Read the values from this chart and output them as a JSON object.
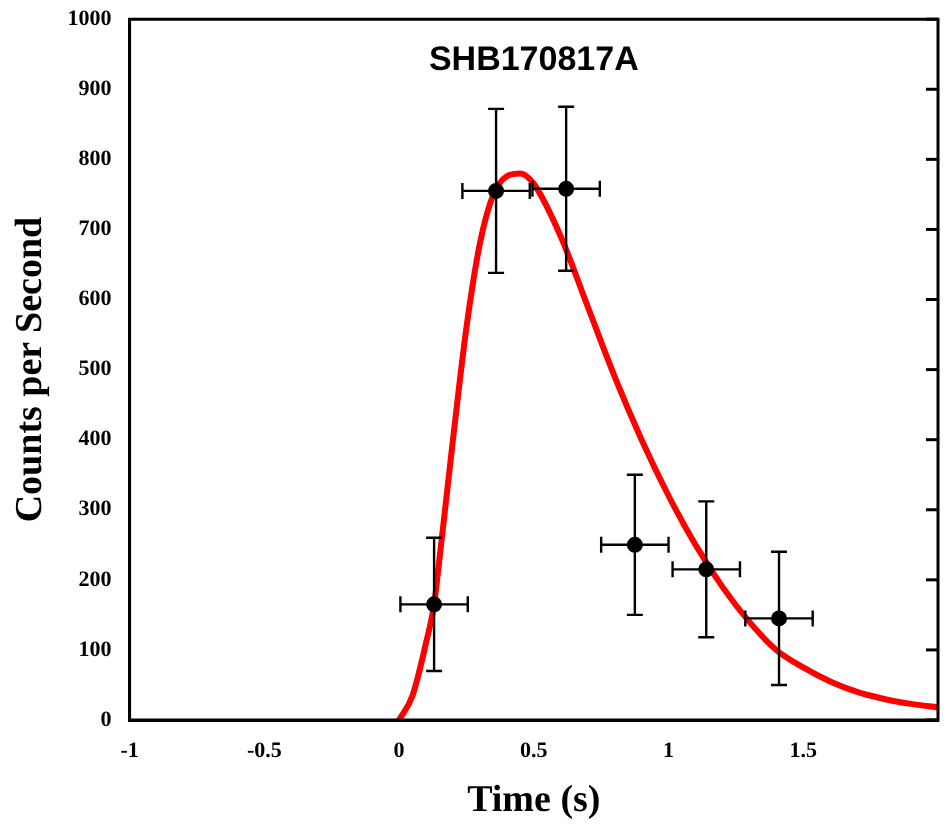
{
  "chart_data": {
    "type": "scatter",
    "title": "SHB170817A",
    "xlabel": "Time (s)",
    "ylabel": "Counts per Second",
    "xlim": [
      -1,
      2
    ],
    "ylim": [
      0,
      1000
    ],
    "xticks": [
      -1,
      -0.5,
      0,
      0.5,
      1,
      1.5,
      {
        "value": 2,
        "label": null
      }
    ],
    "yticks": [
      0,
      100,
      200,
      300,
      400,
      500,
      600,
      700,
      800,
      900,
      1000
    ],
    "grid": false,
    "legend": false,
    "marker": "circle",
    "series": [
      {
        "type": "scatter",
        "color": "#000000",
        "x": [
          0.13,
          0.36,
          0.62,
          0.875,
          1.14,
          1.41
        ],
        "values": [
          165,
          755,
          758,
          250,
          215,
          145
        ],
        "errors": [
          95,
          117,
          117,
          100,
          97,
          95
        ],
        "xerrors": [
          0.125,
          0.125,
          0.125,
          0.125,
          0.125,
          0.125
        ]
      },
      {
        "type": "line",
        "color": "#ff0000",
        "line_style": "solid",
        "marker": "none",
        "x": [
          0,
          0.05,
          0.1,
          0.13,
          0.15,
          0.2,
          0.25,
          0.3,
          0.35,
          0.4,
          0.45,
          0.5,
          0.6,
          0.7,
          0.8,
          0.9,
          1,
          1.1,
          1.2,
          1.3,
          1.4,
          1.5,
          1.6,
          1.7,
          1.8,
          1.9,
          2
        ],
        "values": [
          0,
          35,
          110,
          165,
          230,
          400,
          560,
          680,
          750,
          776,
          780,
          765,
          690,
          590,
          490,
          400,
          320,
          250,
          190,
          140,
          100,
          75,
          55,
          40,
          30,
          23,
          18
        ]
      }
    ]
  }
}
